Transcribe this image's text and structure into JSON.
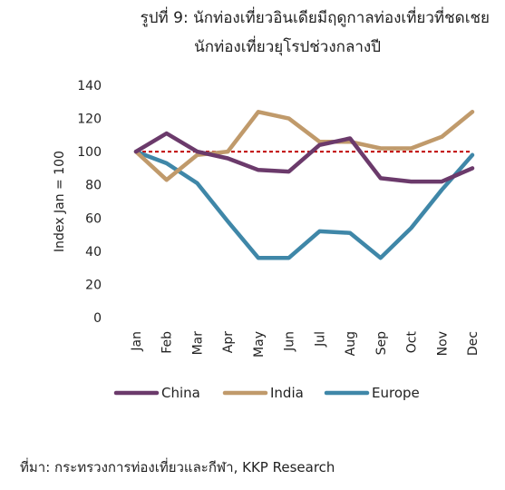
{
  "chart_data": {
    "type": "line",
    "title": "รูปที่  9: นักท่องเที่ยวอินเดียมีฤดูกาลท่องเที่ยวที่ชดเชย",
    "subtitle": "นักท่องเที่ยวยุโรปช่วงกลางปี",
    "ylabel": "Index Jan = 100",
    "xlabel": "",
    "ylim": [
      0,
      140
    ],
    "yticks": [
      0,
      20,
      40,
      60,
      80,
      100,
      120,
      140
    ],
    "categories": [
      "Jan",
      "Feb",
      "Mar",
      "Apr",
      "May",
      "Jun",
      "Jul",
      "Aug",
      "Sep",
      "Oct",
      "Nov",
      "Dec"
    ],
    "series": [
      {
        "name": "China",
        "color": "#6b3a6b",
        "values": [
          100,
          111,
          100,
          96,
          89,
          88,
          104,
          108,
          84,
          82,
          82,
          90
        ]
      },
      {
        "name": "India",
        "color": "#c09a6b",
        "values": [
          100,
          83,
          98,
          100,
          124,
          120,
          106,
          106,
          102,
          102,
          109,
          124
        ]
      },
      {
        "name": "Europe",
        "color": "#3f87a8",
        "values": [
          100,
          93,
          81,
          58,
          36,
          36,
          52,
          51,
          36,
          54,
          77,
          98
        ]
      }
    ],
    "reference_line": {
      "value": 100,
      "color": "#c00000",
      "style": "dashed"
    },
    "legend_position": "bottom",
    "grid": false
  },
  "source": "ที่มา: กระทรวงการท่องเที่ยวและกีฬา, KKP Research"
}
